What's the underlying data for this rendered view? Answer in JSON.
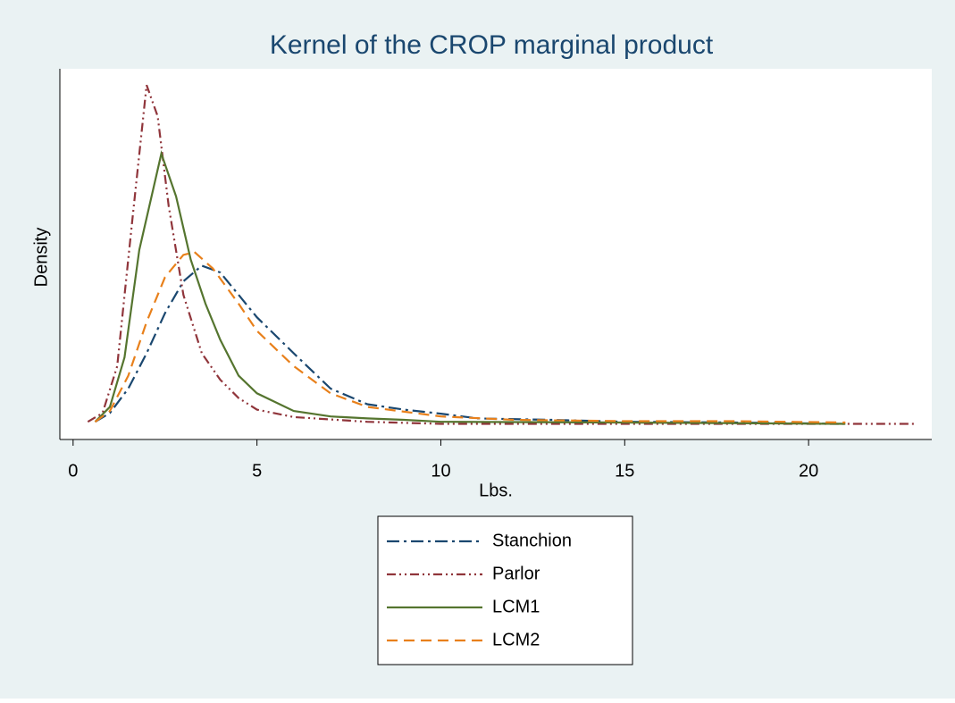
{
  "chart_data": {
    "type": "line",
    "title": "Kernel of the CROP marginal product",
    "x_label": "Lbs.",
    "y_label": "Density",
    "xlim": [
      -0.36,
      23.35
    ],
    "xticks": [
      0,
      5,
      10,
      15,
      20
    ],
    "ylim": [
      -0.022,
      0.524
    ],
    "series": [
      {
        "name": "Stanchion",
        "color": "#1a476f",
        "dash": "dash-dot",
        "x": [
          0.6,
          1.0,
          1.5,
          2.0,
          2.5,
          3.0,
          3.5,
          4.0,
          4.5,
          5.0,
          6.0,
          7.0,
          8.0,
          9.0,
          10,
          11,
          13,
          15,
          18,
          21
        ],
        "values": [
          0.004,
          0.017,
          0.053,
          0.105,
          0.164,
          0.211,
          0.234,
          0.224,
          0.191,
          0.158,
          0.105,
          0.053,
          0.03,
          0.022,
          0.016,
          0.009,
          0.007,
          0.004,
          0.003,
          0.001
        ]
      },
      {
        "name": "Parlor",
        "color": "#90353b",
        "dash": "dash-dot-dot",
        "x": [
          0.4,
          0.8,
          1.2,
          1.6,
          2.0,
          2.3,
          2.6,
          3.0,
          3.5,
          4.0,
          4.5,
          5.0,
          6.0,
          8.0,
          10,
          15,
          20,
          22.9
        ],
        "values": [
          0.004,
          0.017,
          0.086,
          0.296,
          0.5,
          0.454,
          0.322,
          0.191,
          0.105,
          0.066,
          0.039,
          0.022,
          0.011,
          0.004,
          0.001,
          0.001,
          0.001,
          0.001
        ]
      },
      {
        "name": "LCM1",
        "color": "#55752f",
        "dash": "solid",
        "x": [
          0.6,
          1.0,
          1.4,
          1.8,
          2.4,
          2.8,
          3.2,
          3.6,
          4.0,
          4.5,
          5.0,
          6.0,
          7.0,
          8.0,
          9.0,
          10,
          15,
          21
        ],
        "values": [
          0.004,
          0.026,
          0.099,
          0.257,
          0.399,
          0.336,
          0.243,
          0.178,
          0.125,
          0.072,
          0.046,
          0.02,
          0.012,
          0.009,
          0.007,
          0.004,
          0.003,
          0.001
        ]
      },
      {
        "name": "LCM2",
        "color": "#e8801b",
        "dash": "dash",
        "x": [
          0.6,
          1.0,
          1.5,
          2.0,
          2.5,
          3.0,
          3.3,
          3.8,
          4.5,
          5.0,
          6.0,
          7.0,
          8.0,
          10,
          12,
          15,
          18,
          21
        ],
        "values": [
          0.004,
          0.02,
          0.072,
          0.151,
          0.217,
          0.25,
          0.254,
          0.23,
          0.178,
          0.138,
          0.086,
          0.046,
          0.026,
          0.012,
          0.007,
          0.005,
          0.005,
          0.003
        ]
      }
    ]
  }
}
